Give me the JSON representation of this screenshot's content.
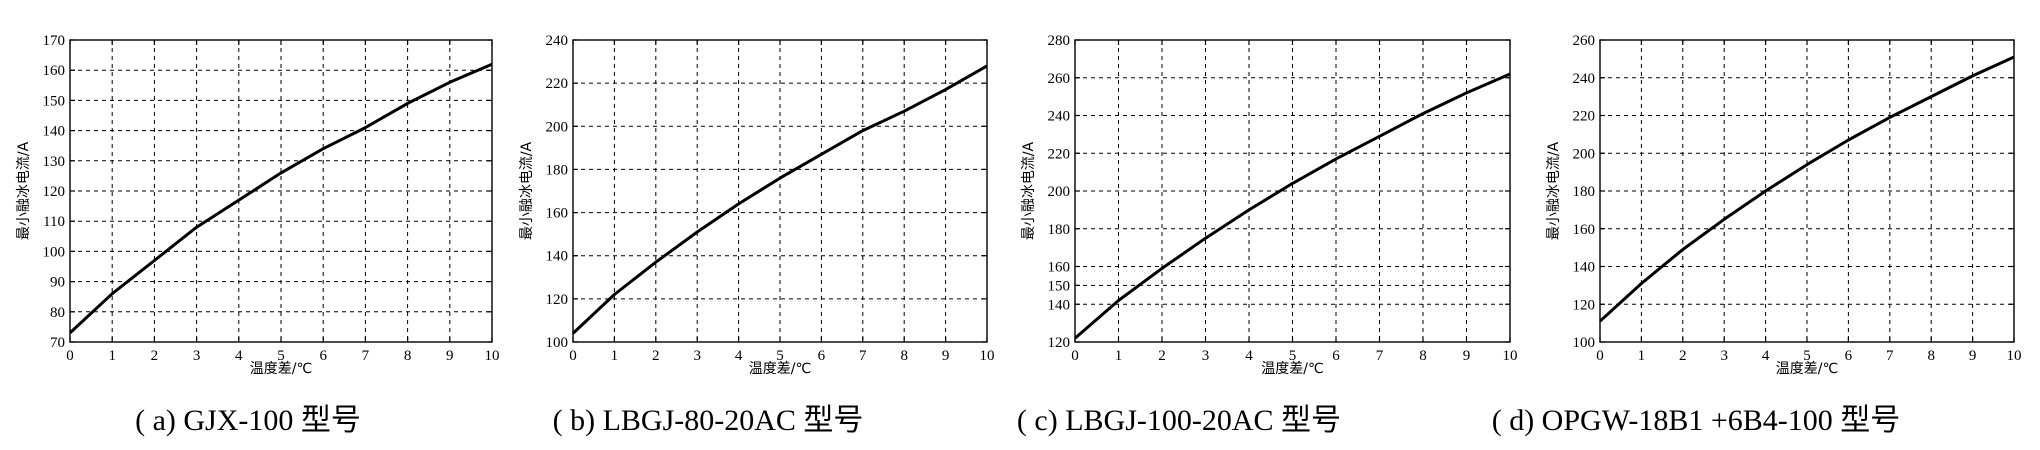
{
  "chart_data": [
    {
      "type": "line",
      "caption": "( a) GJX-100 型号",
      "xlabel": "温度差/℃",
      "ylabel": "最小融冰电流/A",
      "xlim": [
        0,
        10
      ],
      "ylim": [
        70,
        170
      ],
      "xticks": [
        0,
        1,
        2,
        3,
        4,
        5,
        6,
        7,
        8,
        9,
        10
      ],
      "yticks": [
        70,
        80,
        90,
        100,
        110,
        120,
        130,
        140,
        150,
        160,
        170
      ],
      "grid": true,
      "x": [
        0,
        1,
        2,
        3,
        4,
        5,
        6,
        7,
        8,
        9,
        10
      ],
      "y": [
        73,
        86,
        97,
        108,
        117,
        126,
        134,
        141,
        149,
        156,
        162
      ]
    },
    {
      "type": "line",
      "caption": "( b) LBGJ-80-20AC 型号",
      "xlabel": "温度差/℃",
      "ylabel": "最小融冰电流/A",
      "xlim": [
        0,
        10
      ],
      "ylim": [
        100,
        240
      ],
      "xticks": [
        0,
        1,
        2,
        3,
        4,
        5,
        6,
        7,
        8,
        9,
        10
      ],
      "yticks": [
        100,
        120,
        140,
        160,
        180,
        200,
        220,
        240
      ],
      "grid": true,
      "x": [
        0,
        1,
        2,
        3,
        4,
        5,
        6,
        7,
        8,
        9,
        10
      ],
      "y": [
        104,
        122,
        137,
        151,
        164,
        176,
        187,
        198,
        207,
        217,
        228
      ]
    },
    {
      "type": "line",
      "caption": "( c) LBGJ-100-20AC 型号",
      "xlabel": "温度差/℃",
      "ylabel": "最小融冰电流/A",
      "xlim": [
        0,
        10
      ],
      "ylim": [
        120,
        280
      ],
      "xticks": [
        0,
        1,
        2,
        3,
        4,
        5,
        6,
        7,
        8,
        9,
        10
      ],
      "yticks": [
        120,
        140,
        150,
        160,
        180,
        200,
        220,
        240,
        260,
        280
      ],
      "yticks_note": "",
      "grid": true,
      "x": [
        0,
        1,
        2,
        3,
        4,
        5,
        6,
        7,
        8,
        9,
        10
      ],
      "y": [
        122,
        142,
        159,
        175,
        190,
        204,
        217,
        229,
        241,
        252,
        262
      ]
    },
    {
      "type": "line",
      "caption": "( d) OPGW-18B1 +6B4-100 型号",
      "xlabel": "温度差/℃",
      "ylabel": "最小融冰电流/A",
      "xlim": [
        0,
        10
      ],
      "ylim": [
        100,
        260
      ],
      "xticks": [
        0,
        1,
        2,
        3,
        4,
        5,
        6,
        7,
        8,
        9,
        10
      ],
      "yticks": [
        100,
        120,
        140,
        160,
        180,
        200,
        220,
        240,
        260
      ],
      "grid": true,
      "x": [
        0,
        1,
        2,
        3,
        4,
        5,
        6,
        7,
        8,
        9,
        10
      ],
      "y": [
        111,
        131,
        149,
        165,
        180,
        194,
        207,
        219,
        230,
        241,
        251
      ]
    }
  ]
}
